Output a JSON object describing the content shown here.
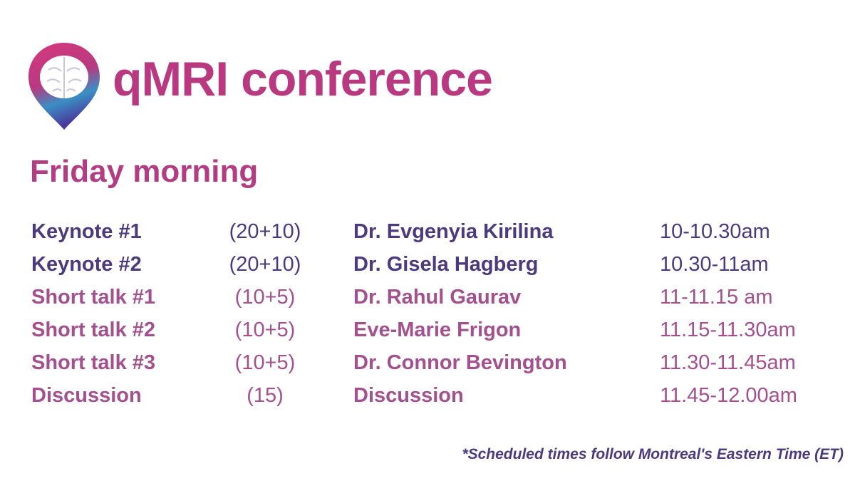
{
  "header": {
    "title": "qMRI conference",
    "subtitle": "Friday morning"
  },
  "table": {
    "rows": [
      [
        "Keynote #1",
        "(20+10)",
        "Dr. Evgenyia Kirilina",
        "10-10.30am"
      ],
      [
        "Keynote #2",
        "(20+10)",
        "Dr. Gisela Hagberg",
        "10.30-11am"
      ],
      [
        "Short talk #1",
        "(10+5)",
        "Dr. Rahul Gaurav",
        "11-11.15 am"
      ],
      [
        "Short talk #2",
        "(10+5)",
        "Eve-Marie Frigon",
        "11.15-11.30am"
      ],
      [
        "Short talk #3",
        "(10+5)",
        "Dr. Connor Bevington",
        "11.30-11.45am"
      ],
      [
        "Discussion",
        "(15)",
        "Discussion",
        "11.45-12.00am"
      ]
    ]
  },
  "footnote": "*Scheduled times follow Montreal's Eastern Time (ET)"
}
